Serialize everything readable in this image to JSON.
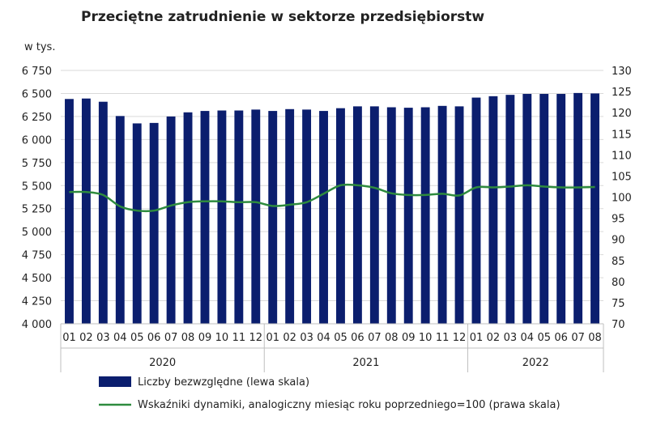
{
  "chart_data": {
    "type": "bar+line",
    "title": "Przeciętne zatrudnienie w sektorze przedsiębiorstw",
    "left_axis_unit": "w tys.",
    "left_ylim": [
      4000,
      6750
    ],
    "left_ticks": [
      "4 000",
      "4 250",
      "4 500",
      "4 750",
      "5 000",
      "5 250",
      "5 500",
      "5 750",
      "6 000",
      "6 250",
      "6 500",
      "6 750"
    ],
    "right_ylim": [
      70,
      130
    ],
    "right_ticks": [
      "70",
      "75",
      "80",
      "85",
      "90",
      "95",
      "100",
      "105",
      "110",
      "115",
      "120",
      "125",
      "130"
    ],
    "categories": [
      "01",
      "02",
      "03",
      "04",
      "05",
      "06",
      "07",
      "08",
      "09",
      "10",
      "11",
      "12",
      "01",
      "02",
      "03",
      "04",
      "05",
      "06",
      "07",
      "08",
      "09",
      "10",
      "11",
      "12",
      "01",
      "02",
      "03",
      "04",
      "05",
      "06",
      "07",
      "08"
    ],
    "years": [
      {
        "label": "2020",
        "start": 0,
        "count": 12
      },
      {
        "label": "2021",
        "start": 12,
        "count": 12
      },
      {
        "label": "2022",
        "start": 24,
        "count": 8
      }
    ],
    "series": [
      {
        "name": "Liczby bezwzględne (lewa skala)",
        "type": "bar",
        "axis": "left",
        "color": "#0b1e6e",
        "values": [
          6440,
          6445,
          6410,
          6255,
          6175,
          6180,
          6250,
          6295,
          6310,
          6315,
          6315,
          6325,
          6310,
          6330,
          6325,
          6310,
          6340,
          6360,
          6360,
          6350,
          6345,
          6350,
          6365,
          6360,
          6455,
          6470,
          6485,
          6495,
          6495,
          6495,
          6505,
          6500
        ]
      },
      {
        "name": "Wskaźniki dynamiki, analogiczny miesiąc roku poprzedniego=100 (prawa skala)",
        "type": "line",
        "axis": "right",
        "color": "#2e8b3e",
        "values": [
          101.2,
          101.2,
          100.5,
          97.8,
          96.8,
          96.8,
          98.0,
          98.8,
          99.0,
          99.0,
          98.8,
          98.8,
          97.9,
          98.2,
          98.8,
          100.8,
          102.8,
          102.8,
          102.2,
          100.9,
          100.5,
          100.5,
          100.8,
          100.4,
          102.3,
          102.3,
          102.5,
          102.8,
          102.5,
          102.3,
          102.3,
          102.4
        ]
      }
    ]
  }
}
